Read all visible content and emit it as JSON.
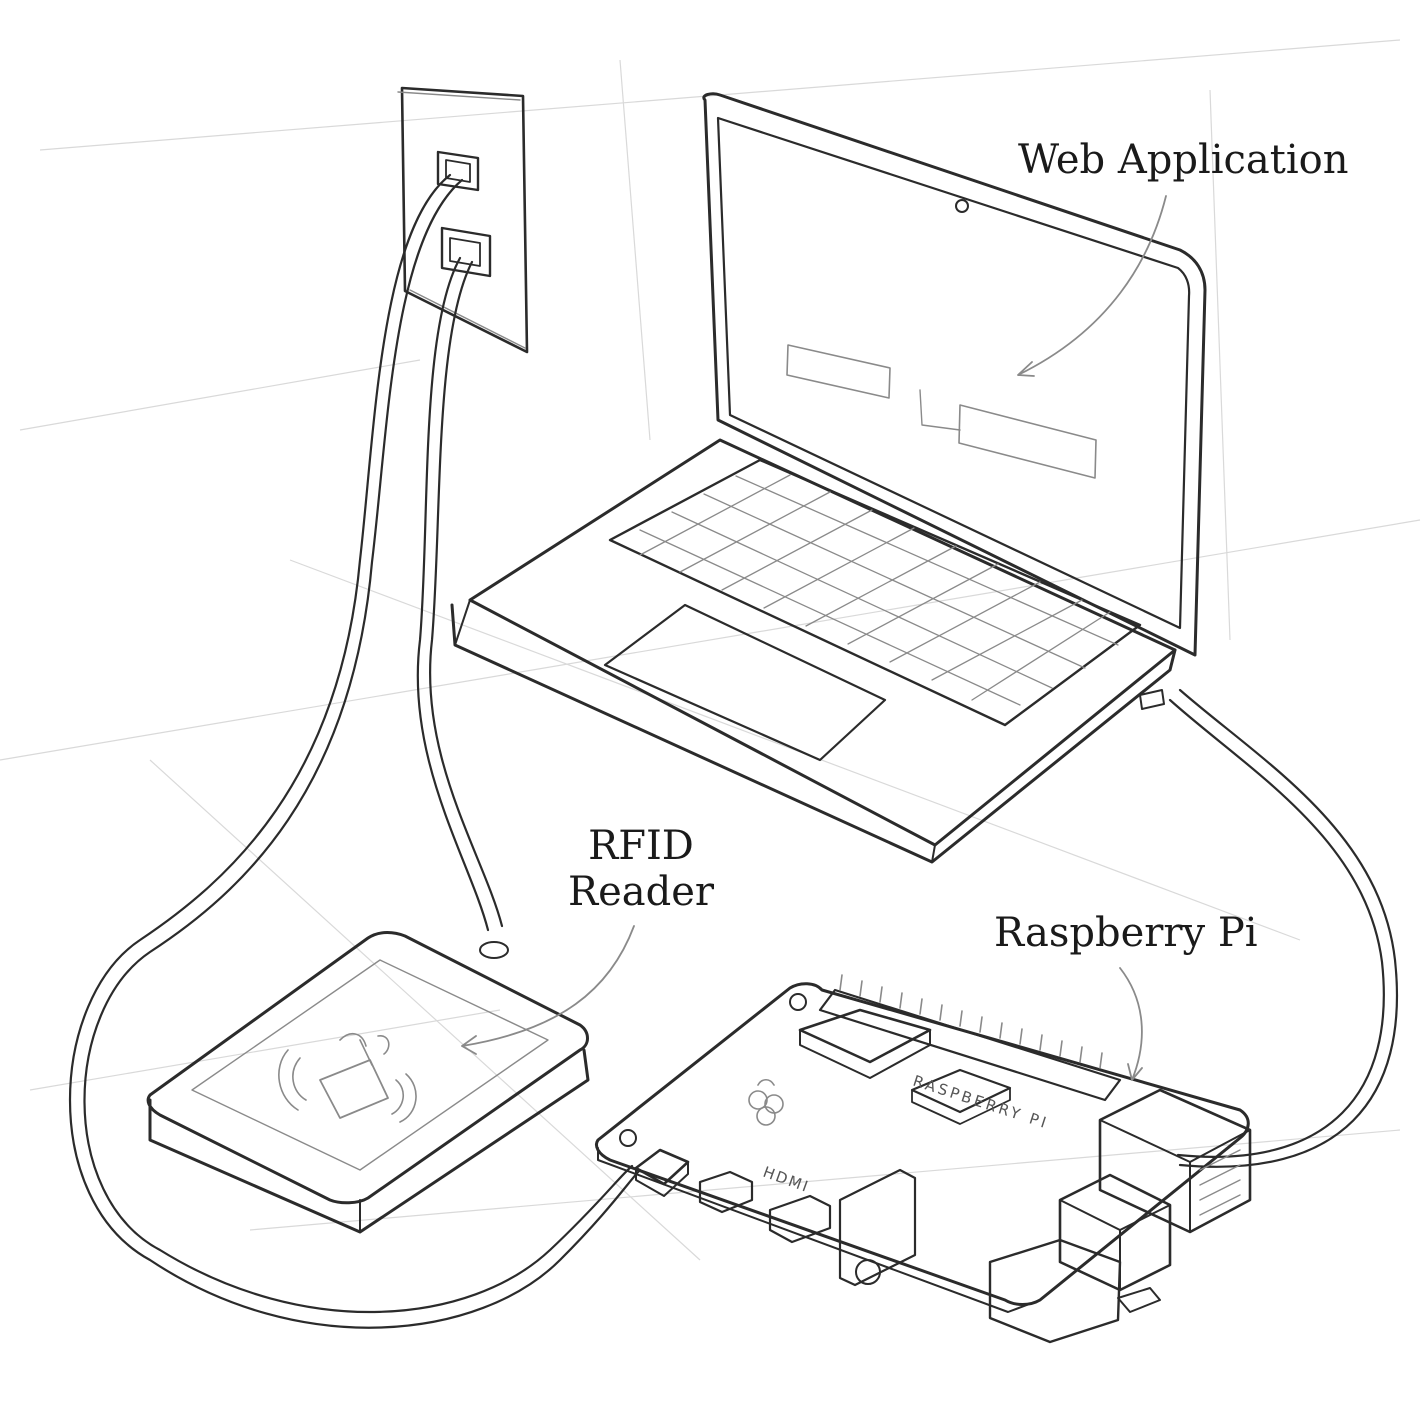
{
  "labels": {
    "web_application": "Web Application",
    "rfid_line1": "RFID",
    "rfid_line2": "Reader",
    "raspberry_pi": "Raspberry Pi"
  },
  "board_text": {
    "silkscreen": "RASPBERRY PI",
    "hdmi": "HDMI"
  },
  "colors": {
    "ink": "#2b2b2b",
    "paper": "#ffffff"
  }
}
